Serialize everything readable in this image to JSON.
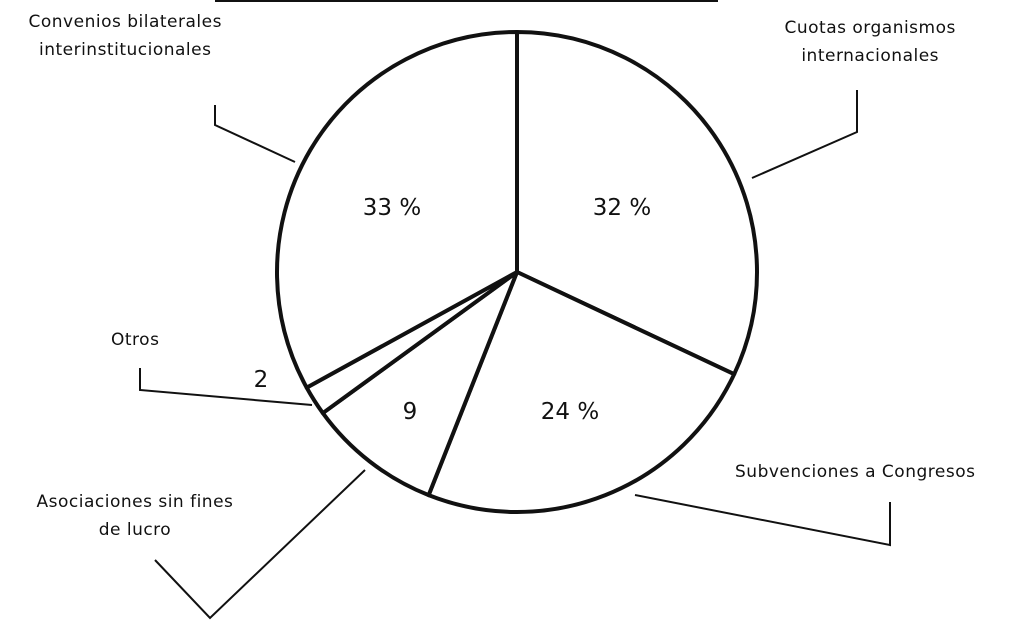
{
  "chart_data": {
    "type": "pie",
    "categories": [
      "Cuotas organismos\ninternacionales",
      "Subvenciones a Congresos",
      "Asociaciones sin fines\nde lucro",
      "Otros",
      "Convenios bilaterales\ninterinstitucionales"
    ],
    "values": [
      32,
      24,
      9,
      2,
      33
    ],
    "value_labels": [
      "32 %",
      "24 %",
      "9",
      "2",
      "33 %"
    ],
    "color": "#ffffff"
  }
}
